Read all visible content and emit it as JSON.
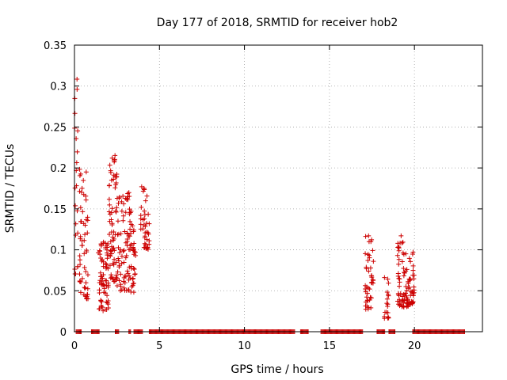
{
  "chart_data": {
    "type": "scatter",
    "title": "Day 177 of 2018, SRMTID for receiver hob2",
    "xlabel": "GPS time / hours",
    "ylabel": "SRMTID / TECUs",
    "xlim": [
      0,
      24
    ],
    "ylim": [
      0,
      0.35
    ],
    "xticks": [
      0,
      5,
      10,
      15,
      20
    ],
    "xtick_labels": [
      "0",
      "5",
      "10",
      "15",
      "20"
    ],
    "yticks": [
      0,
      0.05,
      0.1,
      0.15,
      0.2,
      0.25,
      0.3,
      0.35
    ],
    "ytick_labels": [
      "0",
      "0.05",
      "0.1",
      "0.15",
      "0.2",
      "0.25",
      "0.3",
      "0.35"
    ],
    "grid": true,
    "marker": "+",
    "color": "#cc0000",
    "clusters": [
      {
        "x_range": [
          0.0,
          0.2
        ],
        "y_range": [
          0.07,
          0.31
        ],
        "count": 22
      },
      {
        "x_range": [
          0.3,
          0.8
        ],
        "y_range": [
          0.04,
          0.2
        ],
        "count": 55
      },
      {
        "x_range": [
          1.4,
          2.0
        ],
        "y_range": [
          0.025,
          0.11
        ],
        "count": 70
      },
      {
        "x_range": [
          2.0,
          2.5
        ],
        "y_range": [
          0.06,
          0.22
        ],
        "count": 65
      },
      {
        "x_range": [
          2.5,
          3.3
        ],
        "y_range": [
          0.05,
          0.17
        ],
        "count": 80
      },
      {
        "x_range": [
          3.3,
          3.6
        ],
        "y_range": [
          0.048,
          0.15
        ],
        "count": 30
      },
      {
        "x_range": [
          3.9,
          4.4
        ],
        "y_range": [
          0.1,
          0.18
        ],
        "count": 40
      },
      {
        "x_range": [
          17.1,
          17.6
        ],
        "y_range": [
          0.02,
          0.12
        ],
        "count": 45
      },
      {
        "x_range": [
          18.2,
          18.5
        ],
        "y_range": [
          0.016,
          0.07
        ],
        "count": 18
      },
      {
        "x_range": [
          19.0,
          19.4
        ],
        "y_range": [
          0.03,
          0.12
        ],
        "count": 45
      },
      {
        "x_range": [
          19.4,
          20.0
        ],
        "y_range": [
          0.03,
          0.1
        ],
        "count": 55
      }
    ],
    "zero_segments": [
      [
        0.1,
        0.4
      ],
      [
        1.0,
        1.5
      ],
      [
        2.4,
        2.6
      ],
      [
        3.2,
        3.3
      ],
      [
        3.5,
        4.0
      ],
      [
        4.4,
        13.0
      ],
      [
        13.3,
        13.8
      ],
      [
        14.5,
        17.0
      ],
      [
        17.8,
        18.3
      ],
      [
        18.5,
        18.9
      ],
      [
        19.9,
        23.0
      ]
    ]
  }
}
